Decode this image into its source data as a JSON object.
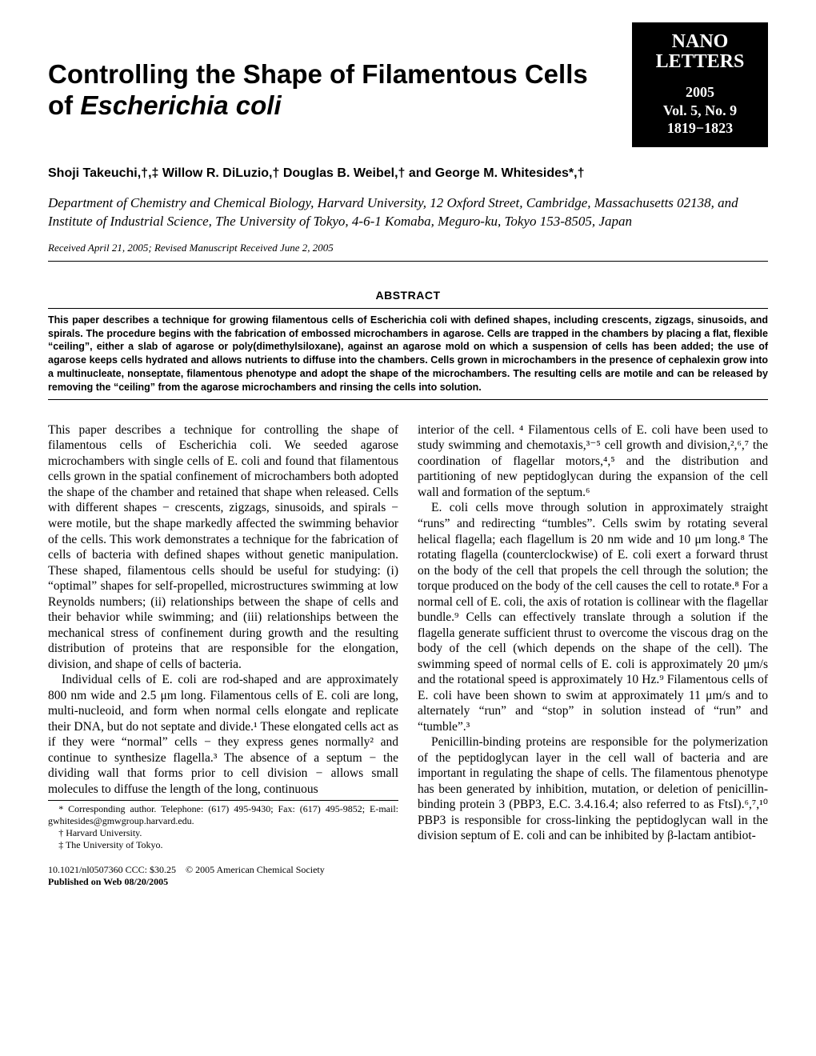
{
  "journal": {
    "name_line1": "NANO",
    "name_line2": "LETTERS",
    "year": "2005",
    "volume": "Vol. 5, No. 9",
    "pages": "1819−​1823"
  },
  "title_part1": "Controlling the Shape of Filamentous Cells of ",
  "title_italic": "Escherichia coli",
  "authors": "Shoji Takeuchi,†,‡ Willow R. DiLuzio,† Douglas B. Weibel,† and George M. Whitesides*,†",
  "affiliation": "Department of Chemistry and Chemical Biology, Harvard University, 12 Oxford Street, Cambridge, Massachusetts 02138, and Institute of Industrial Science, The University of Tokyo, 4-6-1 Komaba, Meguro-ku, Tokyo 153-8505, Japan",
  "dates": "Received April 21, 2005; Revised Manuscript Received June 2, 2005",
  "abstract_label": "ABSTRACT",
  "abstract": "This paper describes a technique for growing filamentous cells of Escherichia coli with defined shapes, including crescents, zigzags, sinusoids, and spirals. The procedure begins with the fabrication of embossed microchambers in agarose. Cells are trapped in the chambers by placing a flat, flexible “ceiling”, either a slab of agarose or poly(dimethylsiloxane), against an agarose mold on which a suspension of cells has been added; the use of agarose keeps cells hydrated and allows nutrients to diffuse into the chambers. Cells grown in microchambers in the presence of cephalexin grow into a multinucleate, nonseptate, filamentous phenotype and adopt the shape of the microchambers. The resulting cells are motile and can be released by removing the “ceiling” from the agarose microchambers and rinsing the cells into solution.",
  "body": {
    "p1": "This paper describes a technique for controlling the shape of filamentous cells of Escherichia coli. We seeded agarose microchambers with single cells of E. coli and found that filamentous cells grown in the spatial confinement of microchambers both adopted the shape of the chamber and retained that shape when released. Cells with different shapes − crescents, zigzags, sinusoids, and spirals − were motile, but the shape markedly affected the swimming behavior of the cells. This work demonstrates a technique for the fabrication of cells of bacteria with defined shapes without genetic manipulation. These shaped, filamentous cells should be useful for studying: (i) “optimal” shapes for self-propelled, microstructures swimming at low Reynolds numbers; (ii) relationships between the shape of cells and their behavior while swimming; and (iii) relationships between the mechanical stress of confinement during growth and the resulting distribution of proteins that are responsible for the elongation, division, and shape of cells of bacteria.",
    "p2": "Individual cells of E. coli are rod-shaped and are approximately 800 nm wide and 2.5 μm long. Filamentous cells of E. coli are long, multi-nucleoid, and form when normal cells elongate and replicate their DNA, but do not septate and divide.¹ These elongated cells act as if they were “normal” cells − they express genes normally² and continue to synthesize flagella.³ The absence of a septum − the dividing wall that forms prior to cell division − allows small molecules to diffuse the length of the long, continuous",
    "p3": "interior of the cell. ⁴ Filamentous cells of E. coli have been used to study swimming and chemotaxis,³⁻⁵ cell growth and division,²,⁶,⁷ the coordination of flagellar motors,⁴,⁵ and the distribution and partitioning of new peptidoglycan during the expansion of the cell wall and formation of the septum.⁶",
    "p4": "E. coli cells move through solution in approximately straight “runs” and redirecting “tumbles”. Cells swim by rotating several helical flagella; each flagellum is 20 nm wide and 10 μm long.⁸ The rotating flagella (counterclockwise) of E. coli exert a forward thrust on the body of the cell that propels the cell through the solution; the torque produced on the body of the cell causes the cell to rotate.⁸ For a normal cell of E. coli, the axis of rotation is collinear with the flagellar bundle.⁹ Cells can effectively translate through a solution if the flagella generate sufficient thrust to overcome the viscous drag on the body of the cell (which depends on the shape of the cell). The swimming speed of normal cells of E. coli is approximately 20 μm/s and the rotational speed is approximately 10 Hz.⁹ Filamentous cells of E. coli have been shown to swim at approximately 11 μm/s and to alternately “run” and “stop” in solution instead of “run” and “tumble”.³",
    "p5": "Penicillin-binding proteins are responsible for the polymerization of the peptidoglycan layer in the cell wall of bacteria and are important in regulating the shape of cells. The filamentous phenotype has been generated by inhibition, mutation, or deletion of penicillin-binding protein 3 (PBP3, E.C. 3.4.16.4; also referred to as FtsI).⁶,⁷,¹⁰ PBP3 is responsible for cross-linking the peptidoglycan wall in the division septum of E. coli and can be inhibited by β-lactam antibiot-"
  },
  "footnotes": {
    "f1": "* Corresponding author. Telephone: (617) 495-9430; Fax: (617) 495-9852; E-mail: gwhitesides@gmwgroup.harvard.edu.",
    "f2": "† Harvard University.",
    "f3": "‡ The University of Tokyo."
  },
  "footer": {
    "doi": "10.1021/nl0507360 CCC: $30.25 © 2005 American Chemical Society",
    "web": "Published on Web 08/20/2005"
  }
}
